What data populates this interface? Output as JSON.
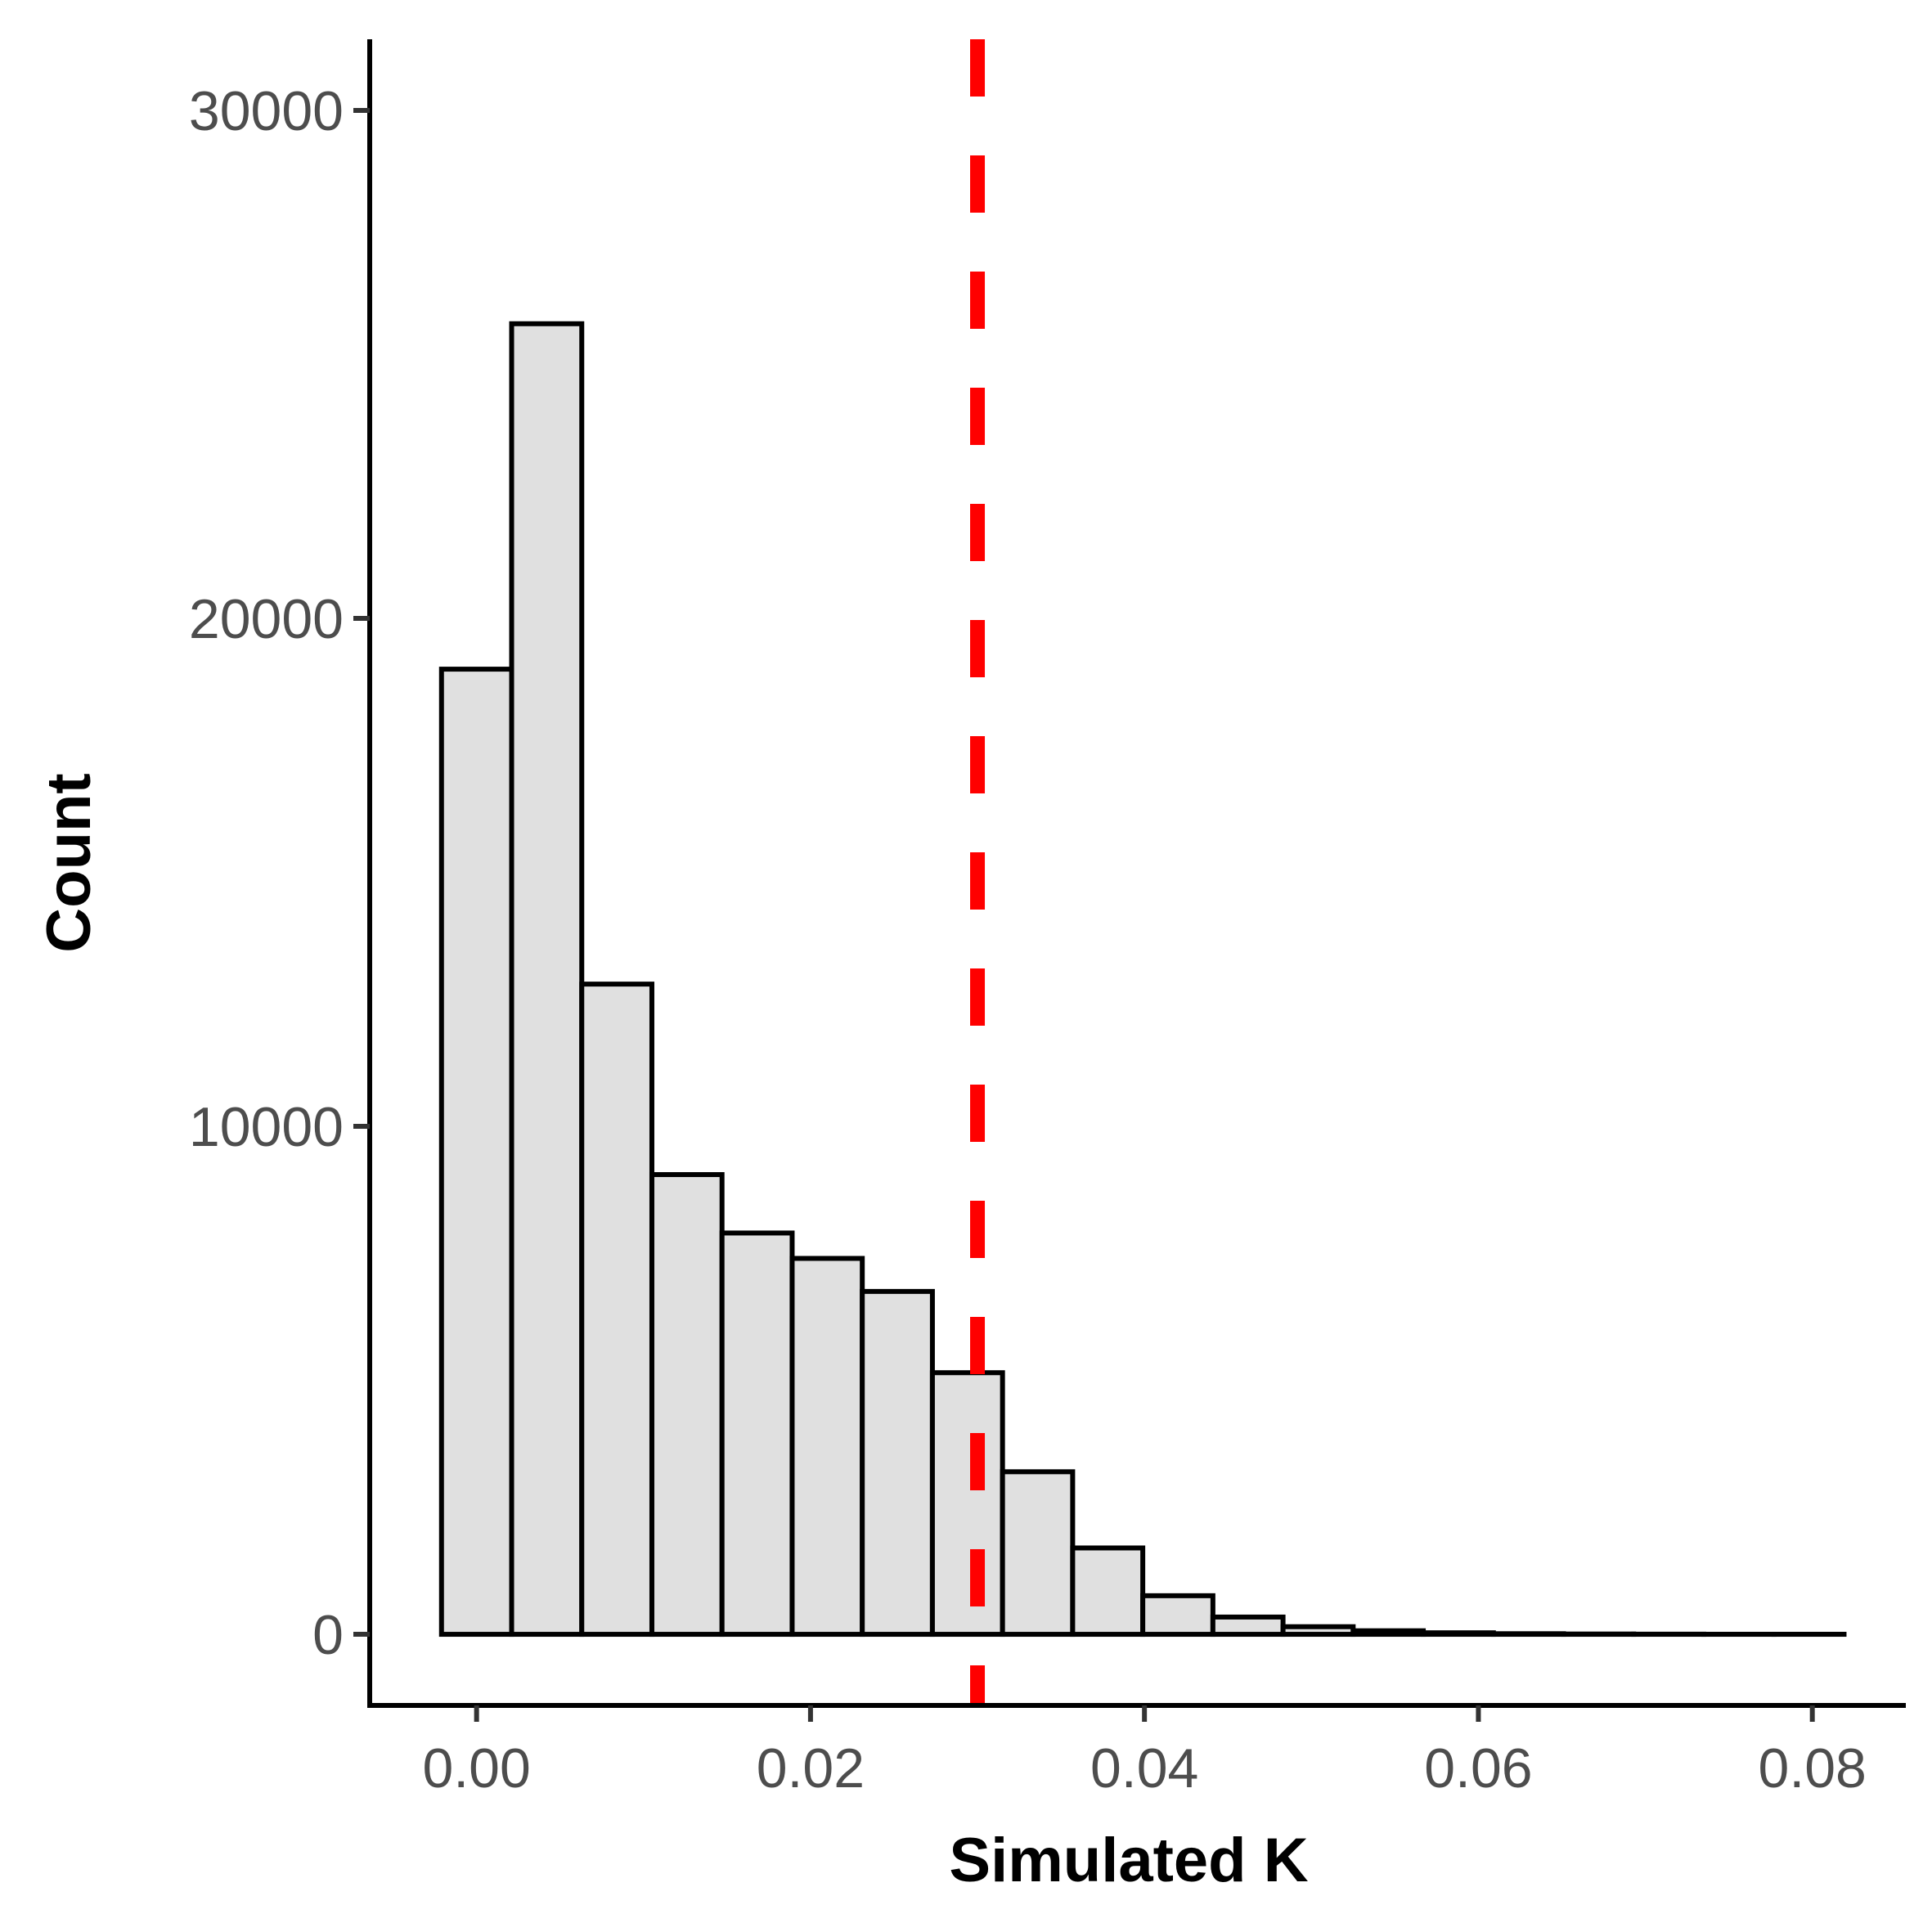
{
  "colors": {
    "bar_fill": "#e0e0e0",
    "bar_stroke": "#000000",
    "reference_line": "#ff0000",
    "axis_line": "#000000",
    "tick_label": "#4d4d4d"
  },
  "chart_data": {
    "type": "bar",
    "subtype": "histogram",
    "title": "",
    "xlabel": "Simulated K",
    "ylabel": "Count",
    "xlim": [
      -0.0064,
      0.0856
    ],
    "ylim": [
      -1400,
      31400
    ],
    "x_ticks": [
      0.0,
      0.02,
      0.04,
      0.06,
      0.08
    ],
    "x_tick_labels": [
      "0.00",
      "0.02",
      "0.04",
      "0.06",
      "0.08"
    ],
    "y_ticks": [
      0,
      10000,
      20000,
      30000
    ],
    "y_tick_labels": [
      "0",
      "10000",
      "20000",
      "30000"
    ],
    "bin_width": 0.0042,
    "bins": [
      {
        "x_start": -0.0021,
        "x_end": 0.0021,
        "count": 19000
      },
      {
        "x_start": 0.0021,
        "x_end": 0.0063,
        "count": 25800
      },
      {
        "x_start": 0.0063,
        "x_end": 0.0105,
        "count": 12800
      },
      {
        "x_start": 0.0105,
        "x_end": 0.0147,
        "count": 9050
      },
      {
        "x_start": 0.0147,
        "x_end": 0.0189,
        "count": 7900
      },
      {
        "x_start": 0.0189,
        "x_end": 0.0231,
        "count": 7400
      },
      {
        "x_start": 0.0231,
        "x_end": 0.0273,
        "count": 6750
      },
      {
        "x_start": 0.0273,
        "x_end": 0.0315,
        "count": 5150
      },
      {
        "x_start": 0.0315,
        "x_end": 0.0357,
        "count": 3200
      },
      {
        "x_start": 0.0357,
        "x_end": 0.0399,
        "count": 1700
      },
      {
        "x_start": 0.0399,
        "x_end": 0.0441,
        "count": 760
      },
      {
        "x_start": 0.0441,
        "x_end": 0.0483,
        "count": 340
      },
      {
        "x_start": 0.0483,
        "x_end": 0.0525,
        "count": 150
      },
      {
        "x_start": 0.0525,
        "x_end": 0.0567,
        "count": 70
      },
      {
        "x_start": 0.0567,
        "x_end": 0.0609,
        "count": 30
      },
      {
        "x_start": 0.0609,
        "x_end": 0.0651,
        "count": 12
      },
      {
        "x_start": 0.0651,
        "x_end": 0.0693,
        "count": 6
      },
      {
        "x_start": 0.0693,
        "x_end": 0.0735,
        "count": 3
      },
      {
        "x_start": 0.0735,
        "x_end": 0.0777,
        "count": 1
      },
      {
        "x_start": 0.0777,
        "x_end": 0.0819,
        "count": 1
      }
    ],
    "reference_line": {
      "x": 0.03,
      "style": "dashed"
    },
    "grid": false,
    "legend": "none"
  }
}
